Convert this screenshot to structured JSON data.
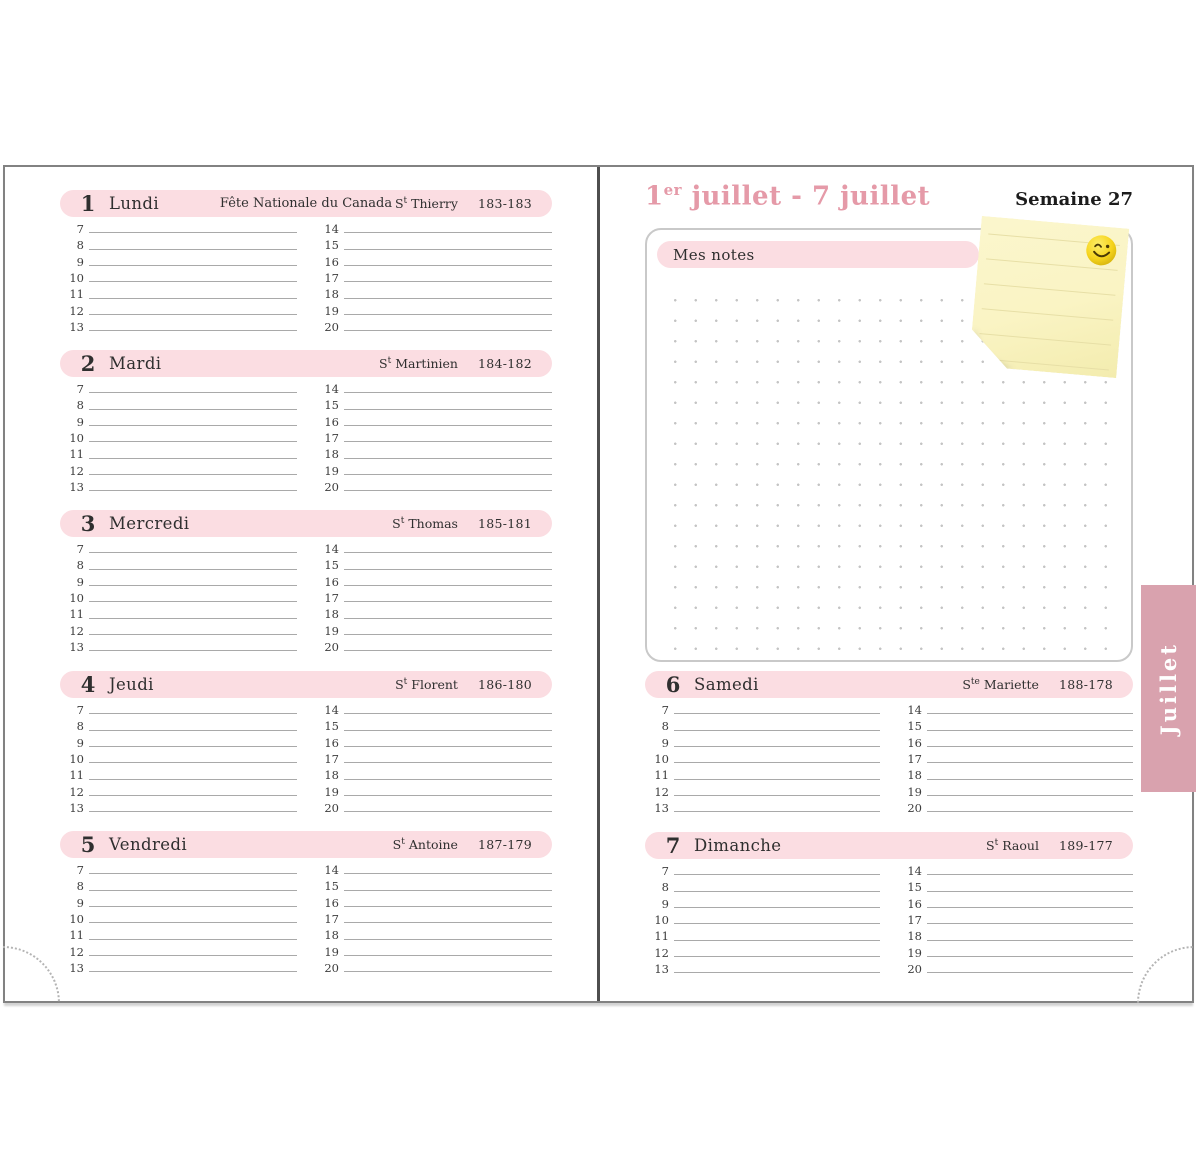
{
  "page_header": {
    "title_number": "1",
    "title_ordinal": "er",
    "title_rest": " juillet - 7 juillet",
    "week_label": "Semaine 27"
  },
  "notes": {
    "label": "Mes notes"
  },
  "month_tab": {
    "label": "Juillet"
  },
  "hours": {
    "morning": [
      "7",
      "8",
      "9",
      "10",
      "11",
      "12",
      "13"
    ],
    "afternoon": [
      "14",
      "15",
      "16",
      "17",
      "18",
      "19",
      "20"
    ]
  },
  "days": [
    {
      "number": "1",
      "name": "Lundi",
      "note": "Fête Nationale du Canada",
      "saint_abbr": "S",
      "saint_sup": "t",
      "saint_name": "Thierry",
      "day_count": "183-183",
      "page": "left"
    },
    {
      "number": "2",
      "name": "Mardi",
      "note": "",
      "saint_abbr": "S",
      "saint_sup": "t",
      "saint_name": "Martinien",
      "day_count": "184-182",
      "page": "left"
    },
    {
      "number": "3",
      "name": "Mercredi",
      "note": "",
      "saint_abbr": "S",
      "saint_sup": "t",
      "saint_name": "Thomas",
      "day_count": "185-181",
      "page": "left"
    },
    {
      "number": "4",
      "name": "Jeudi",
      "note": "",
      "saint_abbr": "S",
      "saint_sup": "t",
      "saint_name": "Florent",
      "day_count": "186-180",
      "page": "left"
    },
    {
      "number": "5",
      "name": "Vendredi",
      "note": "",
      "saint_abbr": "S",
      "saint_sup": "t",
      "saint_name": "Antoine",
      "day_count": "187-179",
      "page": "left"
    },
    {
      "number": "6",
      "name": "Samedi",
      "note": "",
      "saint_abbr": "S",
      "saint_sup": "te",
      "saint_name": "Mariette",
      "day_count": "188-178",
      "page": "right"
    },
    {
      "number": "7",
      "name": "Dimanche",
      "note": "",
      "saint_abbr": "S",
      "saint_sup": "t",
      "saint_name": "Raoul",
      "day_count": "189-177",
      "page": "right"
    }
  ],
  "colors": {
    "bar-pink": "#fbdde2",
    "title-pink": "#e59aa8",
    "tab-pink": "#d9a2ae",
    "note-yellow": "#faf4c4",
    "note-line": "#e7dfa6",
    "line-gray": "#a9a9a9",
    "border-gray": "#828282",
    "dot-gray": "#c4c4c4",
    "text-dark": "#2f2f2f"
  }
}
